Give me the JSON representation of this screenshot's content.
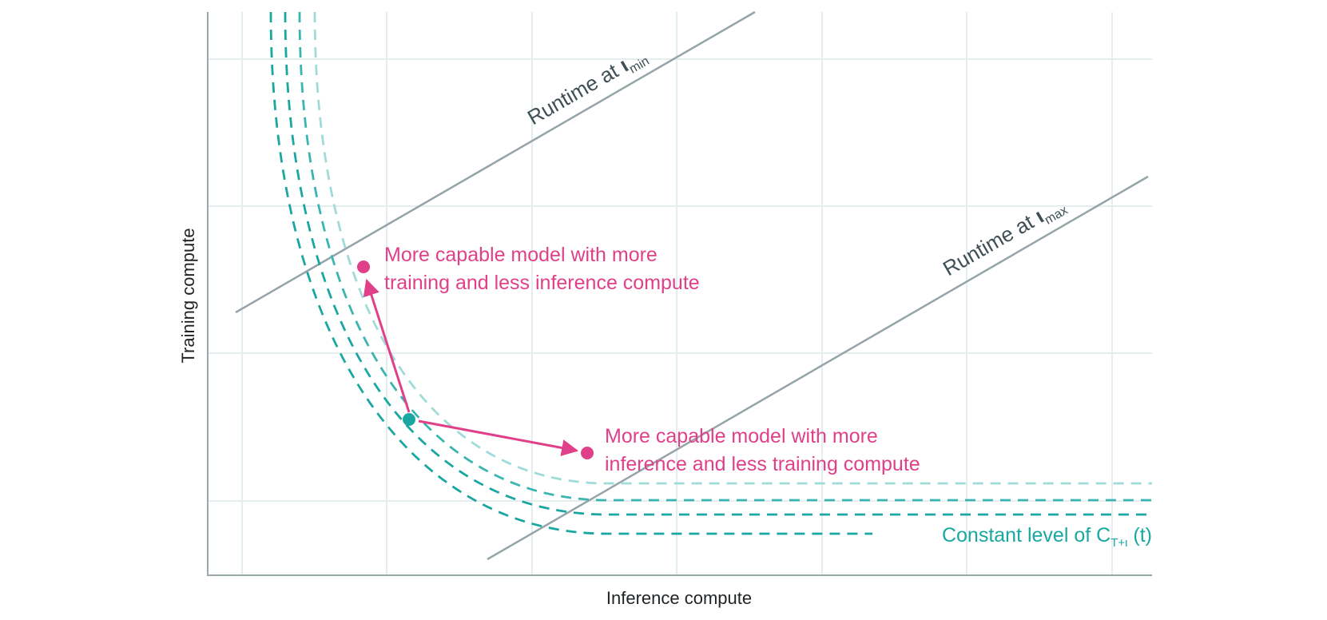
{
  "colors": {
    "grid": "#e4eeee",
    "axis": "#9aa7ab",
    "runtime_line": "#95a4a9",
    "runtime_text": "#3e4f56",
    "curve_dark": "#1aa7a2",
    "curve_mid": "#3ab5b1",
    "curve_light": "#9fdcd9",
    "highlight": "#e0408a",
    "start_point": "#1aa7a2"
  },
  "axes": {
    "x_label": "Inference compute",
    "y_label": "Training compute"
  },
  "runtime_min": {
    "prefix": "Runtime at ",
    "symbol": "ι",
    "subscript": "min"
  },
  "runtime_max": {
    "prefix": "Runtime at ",
    "symbol": "ι",
    "subscript": "max"
  },
  "annotation_training": {
    "line1": "More capable model with more",
    "line2": "training and less inference compute"
  },
  "annotation_inference": {
    "line1": "More capable model with more",
    "line2": "inference and less training compute"
  },
  "curve_label": {
    "prefix": "Constant level of C",
    "subscript": "T+ι",
    "suffix": " (t)"
  }
}
